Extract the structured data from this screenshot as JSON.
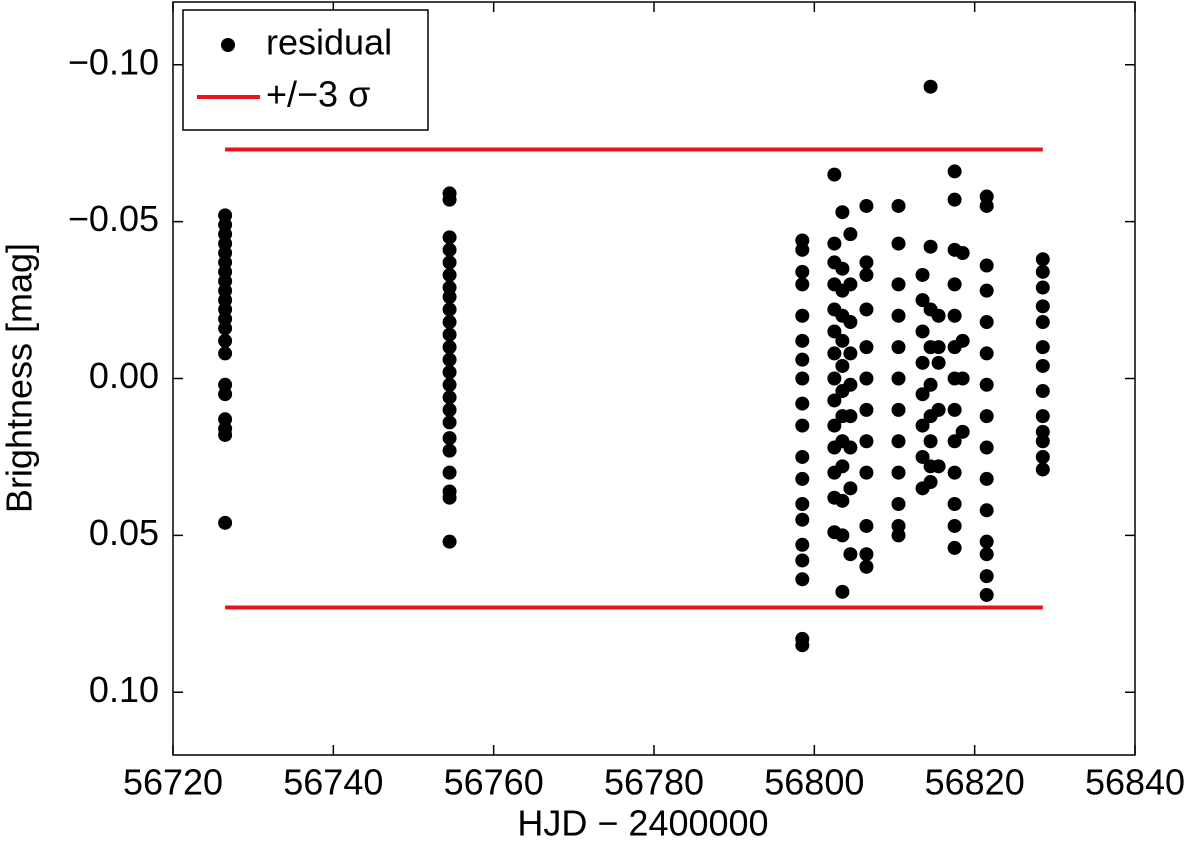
{
  "chart_data": {
    "type": "scatter",
    "xlabel": "HJD − 2400000",
    "ylabel": "Brightness [mag]",
    "xlim": [
      56720,
      56840
    ],
    "xticks": [
      56720,
      56740,
      56760,
      56780,
      56800,
      56820,
      56840
    ],
    "ylim": [
      0.12,
      -0.12
    ],
    "yticks": [
      {
        "value": -0.1,
        "label": "−0.10"
      },
      {
        "value": -0.05,
        "label": "−0.05"
      },
      {
        "value": 0,
        "label": "0.00"
      },
      0.05,
      {
        "value": 0.1,
        "label": "0.10"
      }
    ],
    "legend": "upper left",
    "series": [
      {
        "name": "residual",
        "type": "scatter",
        "color": "#000000",
        "x": [
          56726.5,
          56726.5,
          56726.5,
          56726.5,
          56726.5,
          56726.5,
          56726.5,
          56726.5,
          56726.5,
          56726.5,
          56726.5,
          56726.5,
          56726.5,
          56726.5,
          56726.5,
          56726.5,
          56726.5,
          56726.5,
          56726.5,
          56726.5,
          56726.5,
          56754.5,
          56754.5,
          56754.5,
          56754.5,
          56754.5,
          56754.5,
          56754.5,
          56754.5,
          56754.5,
          56754.5,
          56754.5,
          56754.5,
          56754.5,
          56754.5,
          56754.5,
          56754.5,
          56754.5,
          56754.5,
          56754.5,
          56754.5,
          56754.5,
          56754.5,
          56754.5,
          56754.5,
          56798.5,
          56798.5,
          56798.5,
          56798.5,
          56798.5,
          56798.5,
          56798.5,
          56798.5,
          56798.5,
          56798.5,
          56798.5,
          56798.5,
          56798.5,
          56798.5,
          56798.5,
          56798.5,
          56798.5,
          56798.5,
          56798.5,
          56802.5,
          56802.5,
          56802.5,
          56802.5,
          56802.5,
          56802.5,
          56802.5,
          56802.5,
          56802.5,
          56802.5,
          56802.5,
          56802.5,
          56802.5,
          56802.5,
          56803.5,
          56803.5,
          56803.5,
          56803.5,
          56803.5,
          56803.5,
          56803.5,
          56803.5,
          56803.5,
          56803.5,
          56803.5,
          56803.5,
          56803.5,
          56804.5,
          56804.5,
          56804.5,
          56804.5,
          56804.5,
          56804.5,
          56804.5,
          56804.5,
          56804.5,
          56806.5,
          56806.5,
          56806.5,
          56806.5,
          56806.5,
          56806.5,
          56806.5,
          56806.5,
          56806.5,
          56806.5,
          56806.5,
          56806.5,
          56810.5,
          56810.5,
          56810.5,
          56810.5,
          56810.5,
          56810.5,
          56810.5,
          56810.5,
          56810.5,
          56810.5,
          56810.5,
          56810.5,
          56813.5,
          56813.5,
          56813.5,
          56813.5,
          56813.5,
          56813.5,
          56813.5,
          56813.5,
          56814.5,
          56814.5,
          56814.5,
          56814.5,
          56814.5,
          56814.5,
          56814.5,
          56814.5,
          56814.5,
          56815.5,
          56815.5,
          56815.5,
          56815.5,
          56815.5,
          56817.5,
          56817.5,
          56817.5,
          56817.5,
          56817.5,
          56817.5,
          56817.5,
          56817.5,
          56817.5,
          56817.5,
          56817.5,
          56817.5,
          56817.5,
          56818.5,
          56818.5,
          56818.5,
          56818.5,
          56821.5,
          56821.5,
          56821.5,
          56821.5,
          56821.5,
          56821.5,
          56821.5,
          56821.5,
          56821.5,
          56821.5,
          56821.5,
          56821.5,
          56821.5,
          56821.5,
          56821.5,
          56828.5,
          56828.5,
          56828.5,
          56828.5,
          56828.5,
          56828.5,
          56828.5,
          56828.5,
          56828.5,
          56828.5,
          56828.5,
          56828.5,
          56828.5
        ],
        "values": [
          -0.052,
          -0.049,
          -0.046,
          -0.043,
          -0.04,
          -0.037,
          -0.034,
          -0.031,
          -0.028,
          -0.025,
          -0.022,
          -0.019,
          -0.016,
          -0.012,
          -0.008,
          0.002,
          0.005,
          0.013,
          0.016,
          0.018,
          0.046,
          -0.059,
          -0.057,
          -0.045,
          -0.041,
          -0.037,
          -0.033,
          -0.029,
          -0.026,
          -0.022,
          -0.018,
          -0.014,
          -0.01,
          -0.006,
          -0.002,
          0.002,
          0.006,
          0.01,
          0.014,
          0.019,
          0.023,
          0.03,
          0.036,
          0.038,
          0.052,
          -0.044,
          -0.041,
          -0.034,
          -0.03,
          -0.02,
          -0.012,
          -0.006,
          0.0,
          0.008,
          0.015,
          0.025,
          0.032,
          0.04,
          0.045,
          0.053,
          0.058,
          0.064,
          0.083,
          0.085,
          -0.065,
          -0.043,
          -0.037,
          -0.03,
          -0.022,
          -0.015,
          -0.008,
          0.0,
          0.007,
          0.015,
          0.022,
          0.03,
          0.038,
          0.049,
          -0.053,
          -0.035,
          -0.028,
          -0.02,
          -0.012,
          -0.004,
          0.004,
          0.012,
          0.02,
          0.028,
          0.039,
          0.05,
          0.068,
          -0.046,
          -0.03,
          -0.018,
          -0.008,
          0.002,
          0.012,
          0.022,
          0.035,
          0.056,
          -0.055,
          -0.037,
          -0.033,
          -0.022,
          -0.01,
          0.0,
          0.01,
          0.02,
          0.03,
          0.047,
          0.056,
          0.06,
          -0.055,
          -0.043,
          -0.03,
          -0.02,
          -0.01,
          0.0,
          0.01,
          0.02,
          0.03,
          0.04,
          0.047,
          0.05,
          -0.033,
          -0.025,
          -0.015,
          -0.005,
          0.005,
          0.015,
          0.025,
          0.035,
          -0.093,
          -0.042,
          -0.022,
          -0.01,
          0.002,
          0.012,
          0.02,
          0.028,
          0.033,
          -0.02,
          -0.01,
          -0.005,
          0.01,
          0.028,
          -0.066,
          -0.057,
          -0.041,
          -0.03,
          -0.02,
          -0.01,
          0.0,
          0.01,
          0.02,
          0.03,
          0.04,
          0.047,
          0.054,
          -0.04,
          -0.012,
          0.0,
          0.017,
          -0.058,
          -0.055,
          -0.036,
          -0.028,
          -0.018,
          -0.008,
          0.002,
          0.012,
          0.022,
          0.032,
          0.042,
          0.052,
          0.056,
          0.063,
          0.069,
          -0.038,
          -0.034,
          -0.029,
          -0.023,
          -0.018,
          -0.01,
          -0.004,
          0.004,
          0.012,
          0.017,
          0.02,
          0.025,
          0.029
        ]
      },
      {
        "name": "+/−3 σ",
        "type": "line",
        "color": "#e8141a",
        "x": [
          56726.5,
          56828.5,
          null,
          56726.5,
          56828.5
        ],
        "values": [
          -0.073,
          -0.073,
          null,
          0.073,
          0.073
        ]
      }
    ]
  }
}
